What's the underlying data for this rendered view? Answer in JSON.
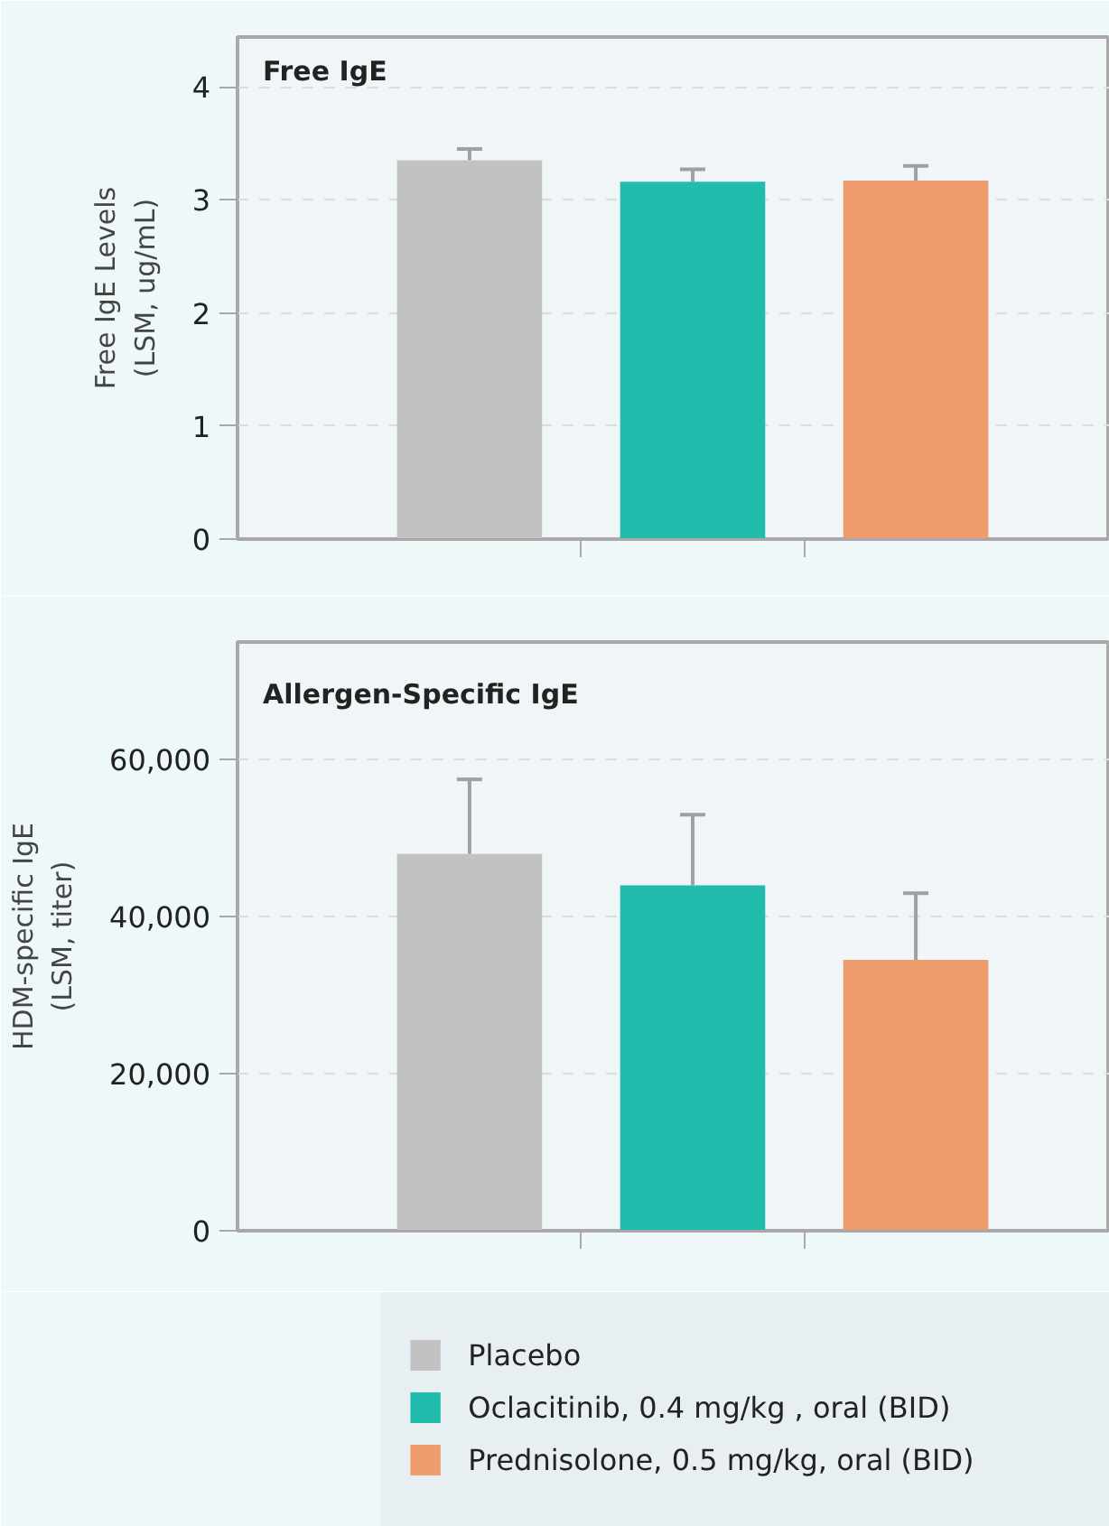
{
  "chart_data": [
    {
      "type": "bar",
      "title": "Free IgE",
      "ylabel": "Free IgE Levels\n(LSM, ug/mL)",
      "categories": [
        null
      ],
      "ylim": [
        0,
        4.44
      ],
      "yticks": [
        0,
        1,
        2,
        3,
        4
      ],
      "grid": "y",
      "legend": false,
      "tick_labels": "y",
      "series": [
        {
          "color": "#c2c2c2",
          "values": [
            3.35
          ],
          "errors": [
            [
              3.35,
              3.45
            ]
          ]
        },
        {
          "color": "#22bcad",
          "values": [
            3.16
          ],
          "errors": [
            [
              3.16,
              3.27
            ]
          ]
        },
        {
          "color": "#ee9c6d",
          "values": [
            3.17
          ],
          "errors": [
            [
              3.17,
              3.3
            ]
          ]
        }
      ]
    },
    {
      "type": "bar",
      "title": "Allergen-Specific IgE",
      "ylabel": "HDM-specific IgE\n(LSM, titer)",
      "categories": [
        null
      ],
      "ylim": [
        0,
        75000
      ],
      "yticks": [
        {
          "value": 0,
          "label": "0"
        },
        {
          "value": 20000,
          "label": "20,000"
        },
        {
          "value": 40000,
          "label": "40,000"
        },
        {
          "value": 60000,
          "label": "60,000"
        }
      ],
      "grid": "y",
      "legend": "bottom",
      "tick_labels": "y",
      "series": [
        {
          "name": "Placebo",
          "color": "#c2c2c2",
          "values": [
            48000
          ],
          "errors": [
            [
              48000,
              57500
            ]
          ]
        },
        {
          "name": "Oclacitinib, 0.4 mg/kg , oral (BID)",
          "color": "#22bcad",
          "values": [
            44000
          ],
          "errors": [
            [
              44000,
              53000
            ]
          ]
        },
        {
          "name": "Prednisolone, 0.5 mg/kg, oral (BID)",
          "color": "#ee9c6d",
          "values": [
            34500
          ],
          "errors": [
            [
              34500,
              43000
            ]
          ]
        }
      ]
    }
  ]
}
